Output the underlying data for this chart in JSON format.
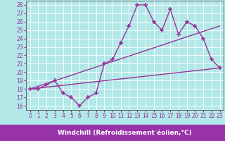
{
  "xlabel": "Windchill (Refroidissement éolien,°C)",
  "bg_color": "#b3e8e8",
  "plot_bg_color": "#b3e8e8",
  "xlabel_bar_color": "#9933aa",
  "line_color": "#993399",
  "grid_color": "#ffffff",
  "spine_color": "#555555",
  "xlim": [
    -0.5,
    23.5
  ],
  "ylim": [
    15.5,
    28.5
  ],
  "xticks": [
    0,
    1,
    2,
    3,
    4,
    5,
    6,
    7,
    8,
    9,
    10,
    11,
    12,
    13,
    14,
    15,
    16,
    17,
    18,
    19,
    20,
    21,
    22,
    23
  ],
  "yticks": [
    16,
    17,
    18,
    19,
    20,
    21,
    22,
    23,
    24,
    25,
    26,
    27,
    28
  ],
  "data_line": [
    18,
    18,
    18.5,
    19,
    17.5,
    17,
    16,
    17,
    17.5,
    21,
    21.5,
    23.5,
    25.5,
    28,
    28,
    26,
    25,
    27.5,
    24.5,
    26,
    25.5,
    24,
    21.5,
    20.5
  ],
  "reg_line1_x": [
    0,
    23
  ],
  "reg_line1_y": [
    18.0,
    25.5
  ],
  "reg_line2_x": [
    0,
    23
  ],
  "reg_line2_y": [
    18.0,
    20.5
  ],
  "tick_fontsize": 5.5,
  "xlabel_fontsize": 6.5
}
